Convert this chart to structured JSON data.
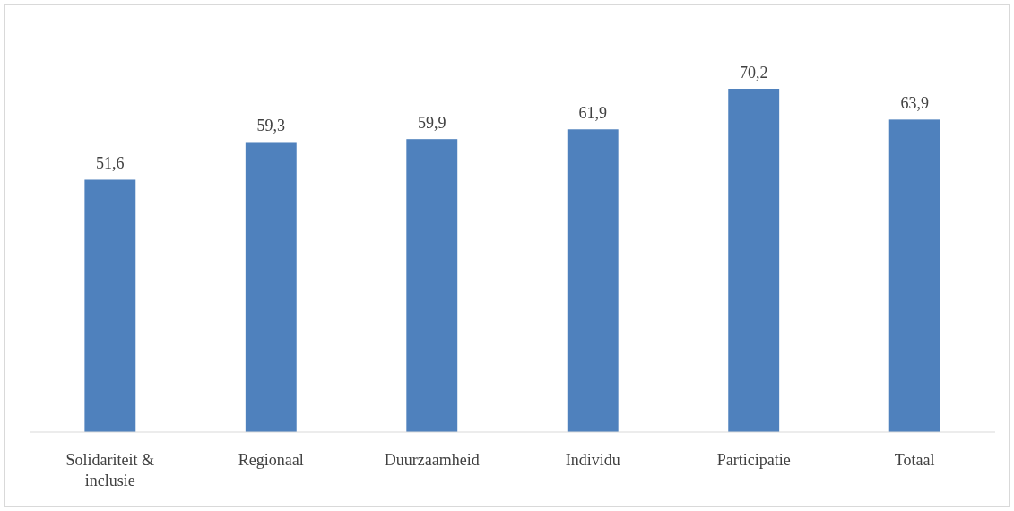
{
  "chart_data": {
    "type": "bar",
    "categories": [
      "Solidariteit & inclusie",
      "Regionaal",
      "Duurzaamheid",
      "Individu",
      "Participatie",
      "Totaal"
    ],
    "values": [
      51.6,
      59.3,
      59.9,
      61.9,
      70.2,
      63.9
    ],
    "value_labels": [
      "51,6",
      "59,3",
      "59,9",
      "61,9",
      "70,2",
      "63,9"
    ],
    "color": "#4f81bd",
    "tick_labels": "x"
  }
}
